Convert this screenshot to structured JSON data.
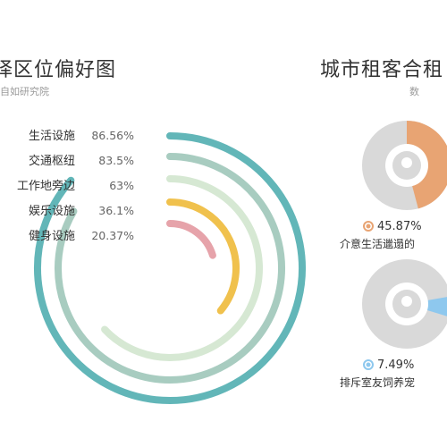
{
  "left_chart": {
    "title": "择区位偏好图",
    "subtitle": "自如研究院"
  },
  "right_chart": {
    "title": "城市租客合租",
    "subtitle": "数"
  },
  "colors": {
    "teal": "#62b6b8",
    "sage": "#a8ccc0",
    "pale_green": "#d6e8d3",
    "yellow": "#f0c14d",
    "pink": "#e6a3aa",
    "orange": "#e8a473",
    "blue": "#8ec8ee",
    "grey": "#d9d9d9"
  },
  "chart_data": [
    {
      "type": "radial-bar",
      "title": "择区位偏好图",
      "subtitle": "自如研究院",
      "categories": [
        "生活设施",
        "交通枢纽",
        "工作地旁边",
        "娱乐设施",
        "健身设施"
      ],
      "values": [
        86.56,
        83.5,
        63,
        36.1,
        20.37
      ],
      "value_labels": [
        "86.56%",
        "83.5%",
        "63%",
        "36.1%",
        "20.37%"
      ],
      "series_colors": [
        "#62b6b8",
        "#a8ccc0",
        "#d6e8d3",
        "#f0c14d",
        "#e6a3aa"
      ]
    },
    {
      "type": "pie",
      "title": "城市租客合租",
      "charts": [
        {
          "value": 45.87,
          "value_label": "45.87%",
          "label": "介意生活邋遢的",
          "color": "#e8a473"
        },
        {
          "value": 7.49,
          "value_label": "7.49%",
          "label": "排斥室友饲养宠",
          "color": "#8ec8ee"
        }
      ]
    }
  ]
}
